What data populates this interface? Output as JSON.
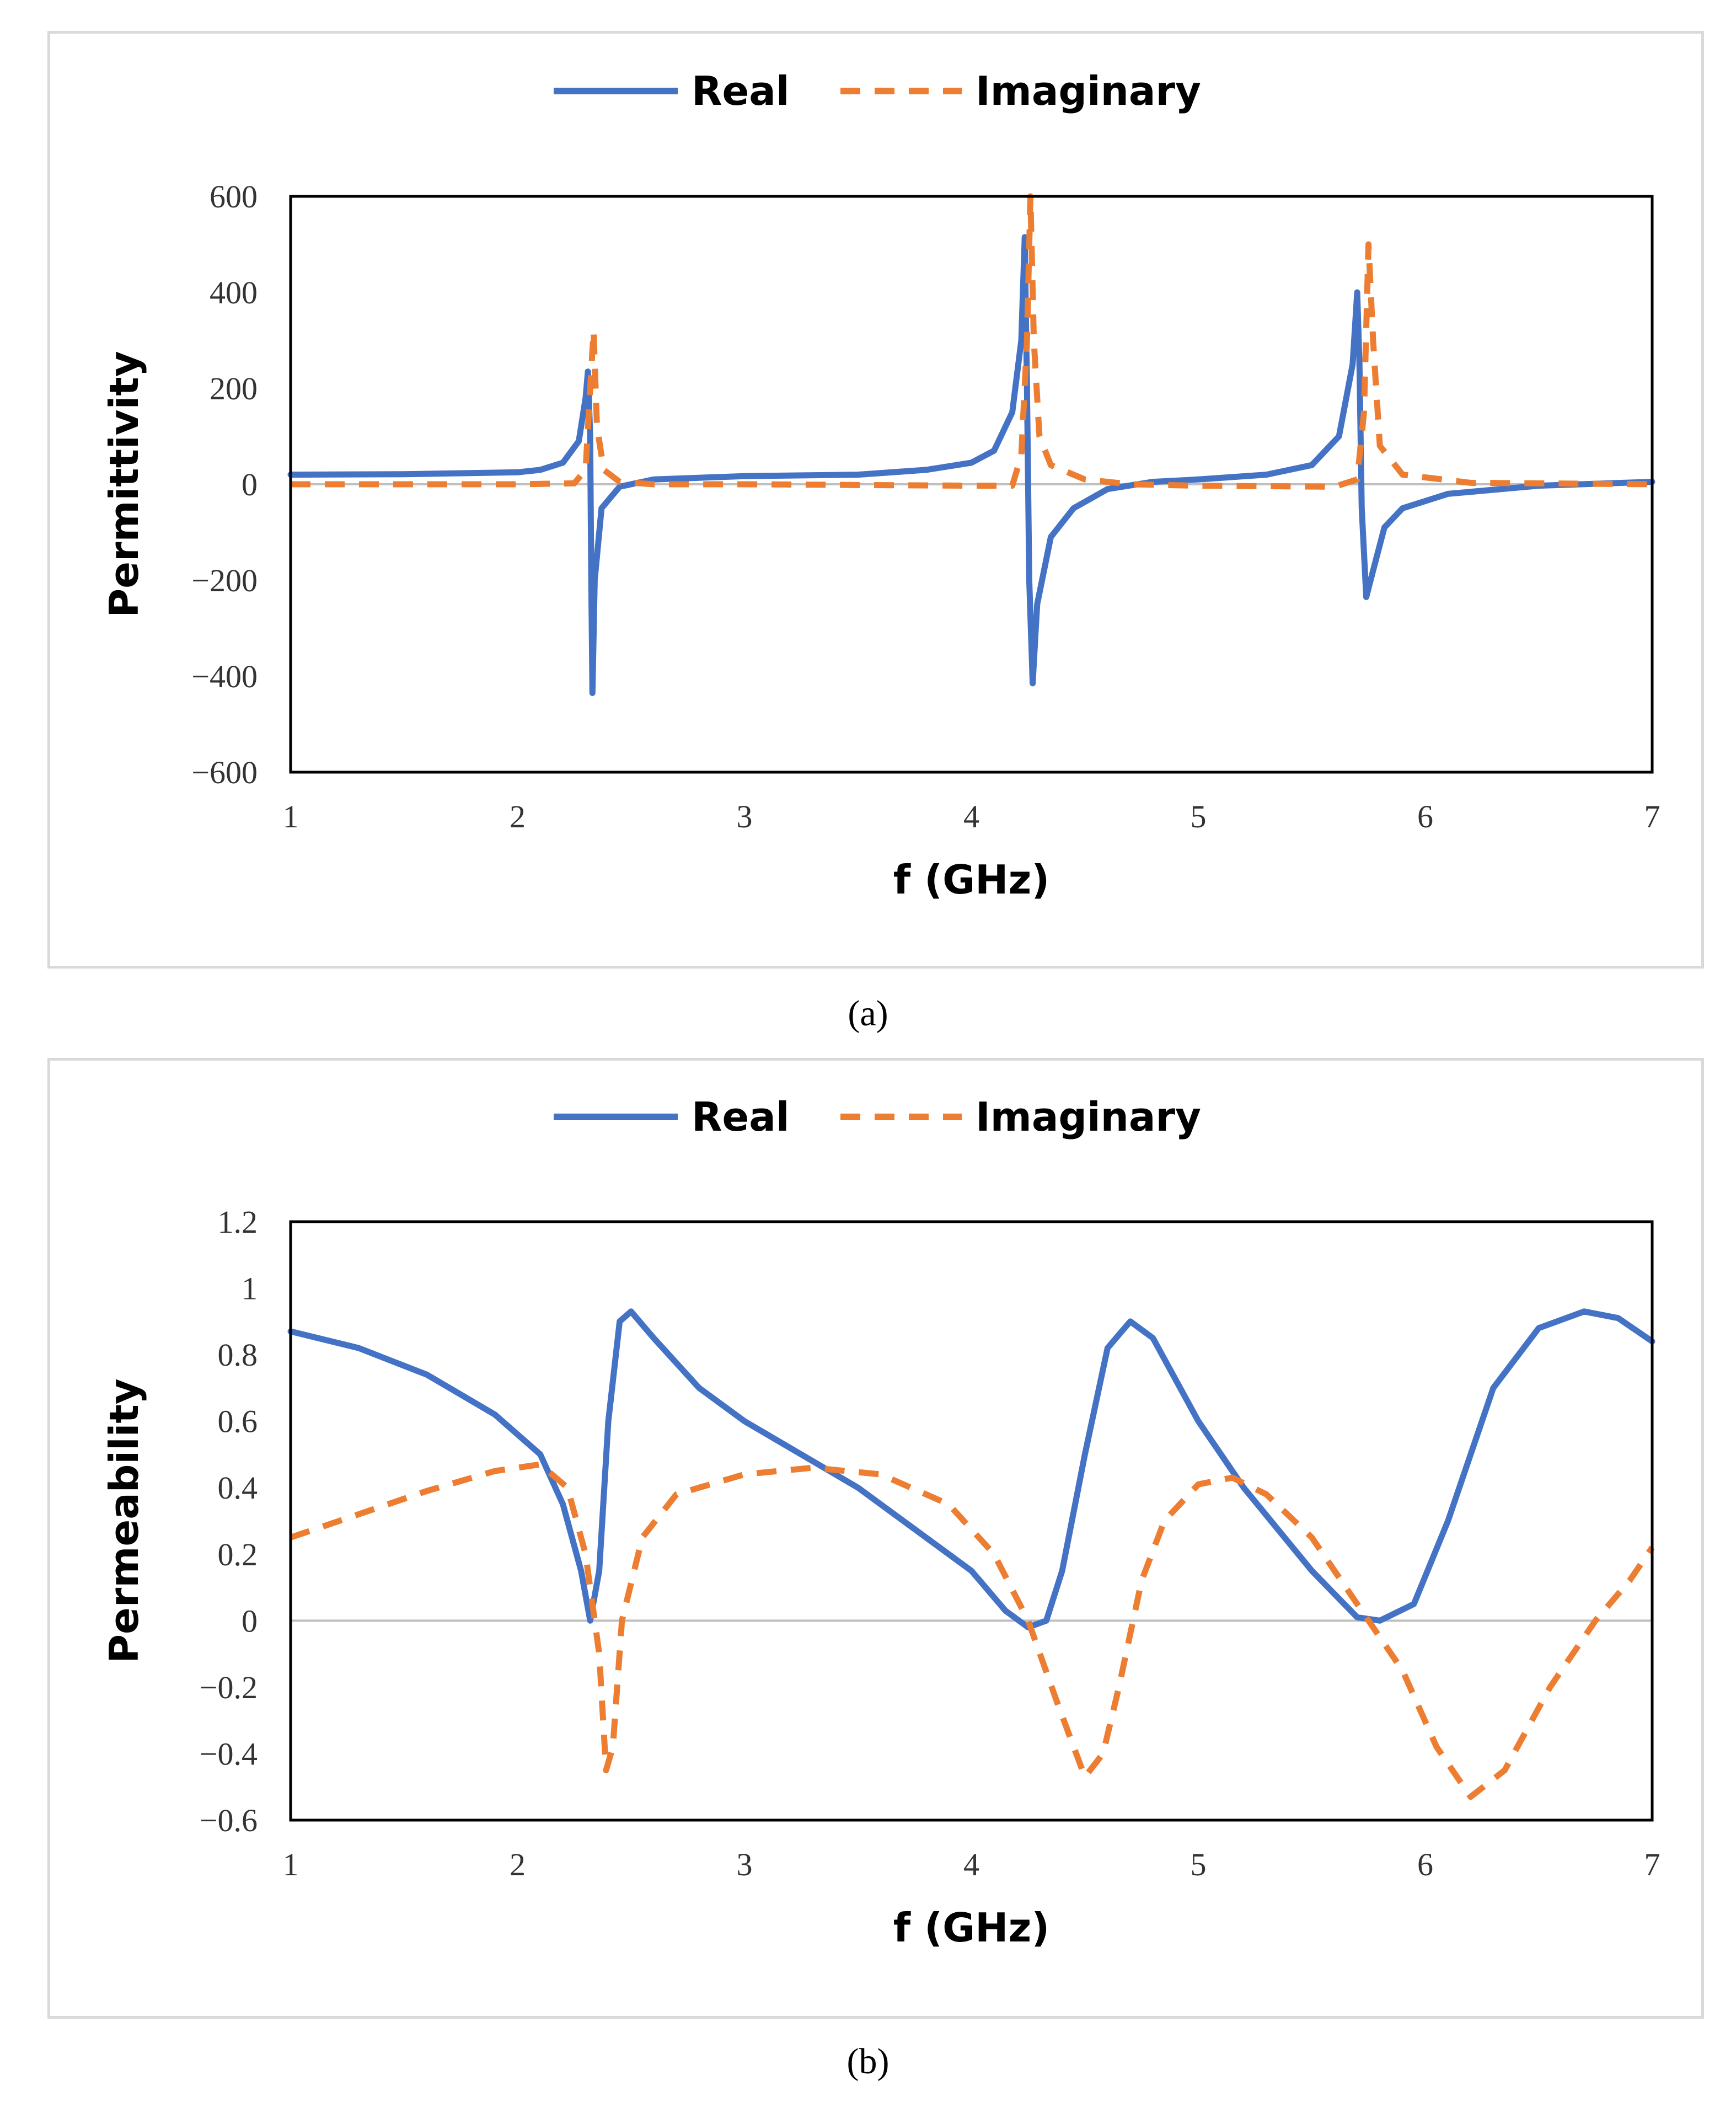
{
  "captions": {
    "a": "(a)",
    "b": "(b)"
  },
  "colors": {
    "real": "#4472C4",
    "imaginary": "#ED7D31",
    "zero_line": "#bfbfbf",
    "axis": "#000000"
  },
  "chart_data": [
    {
      "id": "a",
      "type": "line",
      "title": "",
      "xlabel": "f (GHz)",
      "ylabel": "Permittivity",
      "xlim": [
        1,
        7
      ],
      "ylim": [
        -600,
        600
      ],
      "x_ticks": [
        1,
        2,
        3,
        4,
        5,
        6,
        7
      ],
      "y_ticks": [
        -600,
        -400,
        -200,
        0,
        200,
        400,
        600
      ],
      "x_tick_labels": [
        "1",
        "2",
        "3",
        "4",
        "5",
        "6",
        "7"
      ],
      "y_tick_labels": [
        "−600",
        "−400",
        "−200",
        "0",
        "200",
        "400",
        "600"
      ],
      "legend": [
        "Real",
        "Imaginary"
      ],
      "legend_position": "top-center",
      "series": [
        {
          "name": "Real",
          "style": "solid",
          "points": [
            [
              1,
              20
            ],
            [
              1.5,
              21
            ],
            [
              2,
              25
            ],
            [
              2.1,
              30
            ],
            [
              2.2,
              45
            ],
            [
              2.27,
              90
            ],
            [
              2.3,
              180
            ],
            [
              2.31,
              235
            ],
            [
              2.32,
              100
            ],
            [
              2.325,
              -200
            ],
            [
              2.33,
              -435
            ],
            [
              2.34,
              -200
            ],
            [
              2.37,
              -50
            ],
            [
              2.45,
              -5
            ],
            [
              2.6,
              10
            ],
            [
              3,
              17
            ],
            [
              3.5,
              20
            ],
            [
              3.8,
              30
            ],
            [
              4,
              45
            ],
            [
              4.1,
              70
            ],
            [
              4.18,
              150
            ],
            [
              4.22,
              300
            ],
            [
              4.235,
              515
            ],
            [
              4.245,
              200
            ],
            [
              4.255,
              -200
            ],
            [
              4.27,
              -415
            ],
            [
              4.29,
              -250
            ],
            [
              4.35,
              -110
            ],
            [
              4.45,
              -50
            ],
            [
              4.6,
              -10
            ],
            [
              4.8,
              5
            ],
            [
              5,
              10
            ],
            [
              5.3,
              20
            ],
            [
              5.5,
              40
            ],
            [
              5.62,
              100
            ],
            [
              5.68,
              250
            ],
            [
              5.7,
              400
            ],
            [
              5.71,
              250
            ],
            [
              5.72,
              -50
            ],
            [
              5.74,
              -235
            ],
            [
              5.77,
              -180
            ],
            [
              5.82,
              -90
            ],
            [
              5.9,
              -50
            ],
            [
              6.1,
              -20
            ],
            [
              6.5,
              -3
            ],
            [
              7,
              5
            ]
          ]
        },
        {
          "name": "Imaginary",
          "style": "dashed",
          "points": [
            [
              1,
              0
            ],
            [
              2,
              0
            ],
            [
              2.25,
              2
            ],
            [
              2.3,
              30
            ],
            [
              2.32,
              200
            ],
            [
              2.335,
              320
            ],
            [
              2.35,
              120
            ],
            [
              2.38,
              30
            ],
            [
              2.45,
              5
            ],
            [
              2.6,
              0
            ],
            [
              3,
              0
            ],
            [
              4,
              -3
            ],
            [
              4.18,
              -3
            ],
            [
              4.22,
              60
            ],
            [
              4.245,
              300
            ],
            [
              4.26,
              600
            ],
            [
              4.275,
              300
            ],
            [
              4.3,
              100
            ],
            [
              4.35,
              40
            ],
            [
              4.5,
              10
            ],
            [
              4.7,
              0
            ],
            [
              5,
              -3
            ],
            [
              5.6,
              -5
            ],
            [
              5.7,
              10
            ],
            [
              5.73,
              150
            ],
            [
              5.75,
              500
            ],
            [
              5.77,
              300
            ],
            [
              5.8,
              80
            ],
            [
              5.9,
              20
            ],
            [
              6.2,
              3
            ],
            [
              7,
              0
            ]
          ]
        }
      ]
    },
    {
      "id": "b",
      "type": "line",
      "title": "",
      "xlabel": "f (GHz)",
      "ylabel": "Permeability",
      "xlim": [
        1,
        7
      ],
      "ylim": [
        -0.6,
        1.2
      ],
      "x_ticks": [
        1,
        2,
        3,
        4,
        5,
        6,
        7
      ],
      "y_ticks": [
        -0.6,
        -0.4,
        -0.2,
        0,
        0.2,
        0.4,
        0.6,
        0.8,
        1,
        1.2
      ],
      "x_tick_labels": [
        "1",
        "2",
        "3",
        "4",
        "5",
        "6",
        "7"
      ],
      "y_tick_labels": [
        "−0.6",
        "−0.4",
        "−0.2",
        "0",
        "0.2",
        "0.4",
        "0.6",
        "0.8",
        "1",
        "1.2"
      ],
      "legend": [
        "Real",
        "Imaginary"
      ],
      "legend_position": "top-center",
      "series": [
        {
          "name": "Real",
          "style": "solid",
          "points": [
            [
              1,
              0.87
            ],
            [
              1.3,
              0.82
            ],
            [
              1.6,
              0.74
            ],
            [
              1.9,
              0.62
            ],
            [
              2.1,
              0.5
            ],
            [
              2.2,
              0.35
            ],
            [
              2.28,
              0.15
            ],
            [
              2.32,
              0.0
            ],
            [
              2.36,
              0.15
            ],
            [
              2.4,
              0.6
            ],
            [
              2.45,
              0.9
            ],
            [
              2.5,
              0.93
            ],
            [
              2.6,
              0.85
            ],
            [
              2.8,
              0.7
            ],
            [
              3,
              0.6
            ],
            [
              3.5,
              0.4
            ],
            [
              4,
              0.15
            ],
            [
              4.15,
              0.03
            ],
            [
              4.25,
              -0.02
            ],
            [
              4.33,
              0.0
            ],
            [
              4.4,
              0.15
            ],
            [
              4.5,
              0.5
            ],
            [
              4.6,
              0.82
            ],
            [
              4.7,
              0.9
            ],
            [
              4.8,
              0.85
            ],
            [
              5,
              0.6
            ],
            [
              5.2,
              0.4
            ],
            [
              5.5,
              0.15
            ],
            [
              5.7,
              0.01
            ],
            [
              5.8,
              0.0
            ],
            [
              5.95,
              0.05
            ],
            [
              6.1,
              0.3
            ],
            [
              6.3,
              0.7
            ],
            [
              6.5,
              0.88
            ],
            [
              6.7,
              0.93
            ],
            [
              6.85,
              0.91
            ],
            [
              7,
              0.84
            ]
          ]
        },
        {
          "name": "Imaginary",
          "style": "dashed",
          "points": [
            [
              1,
              0.25
            ],
            [
              1.3,
              0.32
            ],
            [
              1.6,
              0.39
            ],
            [
              1.9,
              0.45
            ],
            [
              2.1,
              0.47
            ],
            [
              2.22,
              0.4
            ],
            [
              2.3,
              0.2
            ],
            [
              2.36,
              -0.1
            ],
            [
              2.39,
              -0.45
            ],
            [
              2.42,
              -0.38
            ],
            [
              2.46,
              0.0
            ],
            [
              2.55,
              0.25
            ],
            [
              2.7,
              0.38
            ],
            [
              3,
              0.44
            ],
            [
              3.3,
              0.46
            ],
            [
              3.6,
              0.44
            ],
            [
              3.9,
              0.35
            ],
            [
              4.1,
              0.2
            ],
            [
              4.25,
              0.0
            ],
            [
              4.38,
              -0.25
            ],
            [
              4.5,
              -0.47
            ],
            [
              4.58,
              -0.4
            ],
            [
              4.65,
              -0.2
            ],
            [
              4.75,
              0.12
            ],
            [
              4.85,
              0.3
            ],
            [
              5,
              0.41
            ],
            [
              5.15,
              0.43
            ],
            [
              5.3,
              0.38
            ],
            [
              5.5,
              0.25
            ],
            [
              5.7,
              0.05
            ],
            [
              5.9,
              -0.15
            ],
            [
              6.05,
              -0.38
            ],
            [
              6.2,
              -0.53
            ],
            [
              6.35,
              -0.45
            ],
            [
              6.55,
              -0.2
            ],
            [
              6.75,
              0.0
            ],
            [
              6.9,
              0.12
            ],
            [
              7,
              0.22
            ]
          ]
        }
      ]
    }
  ]
}
